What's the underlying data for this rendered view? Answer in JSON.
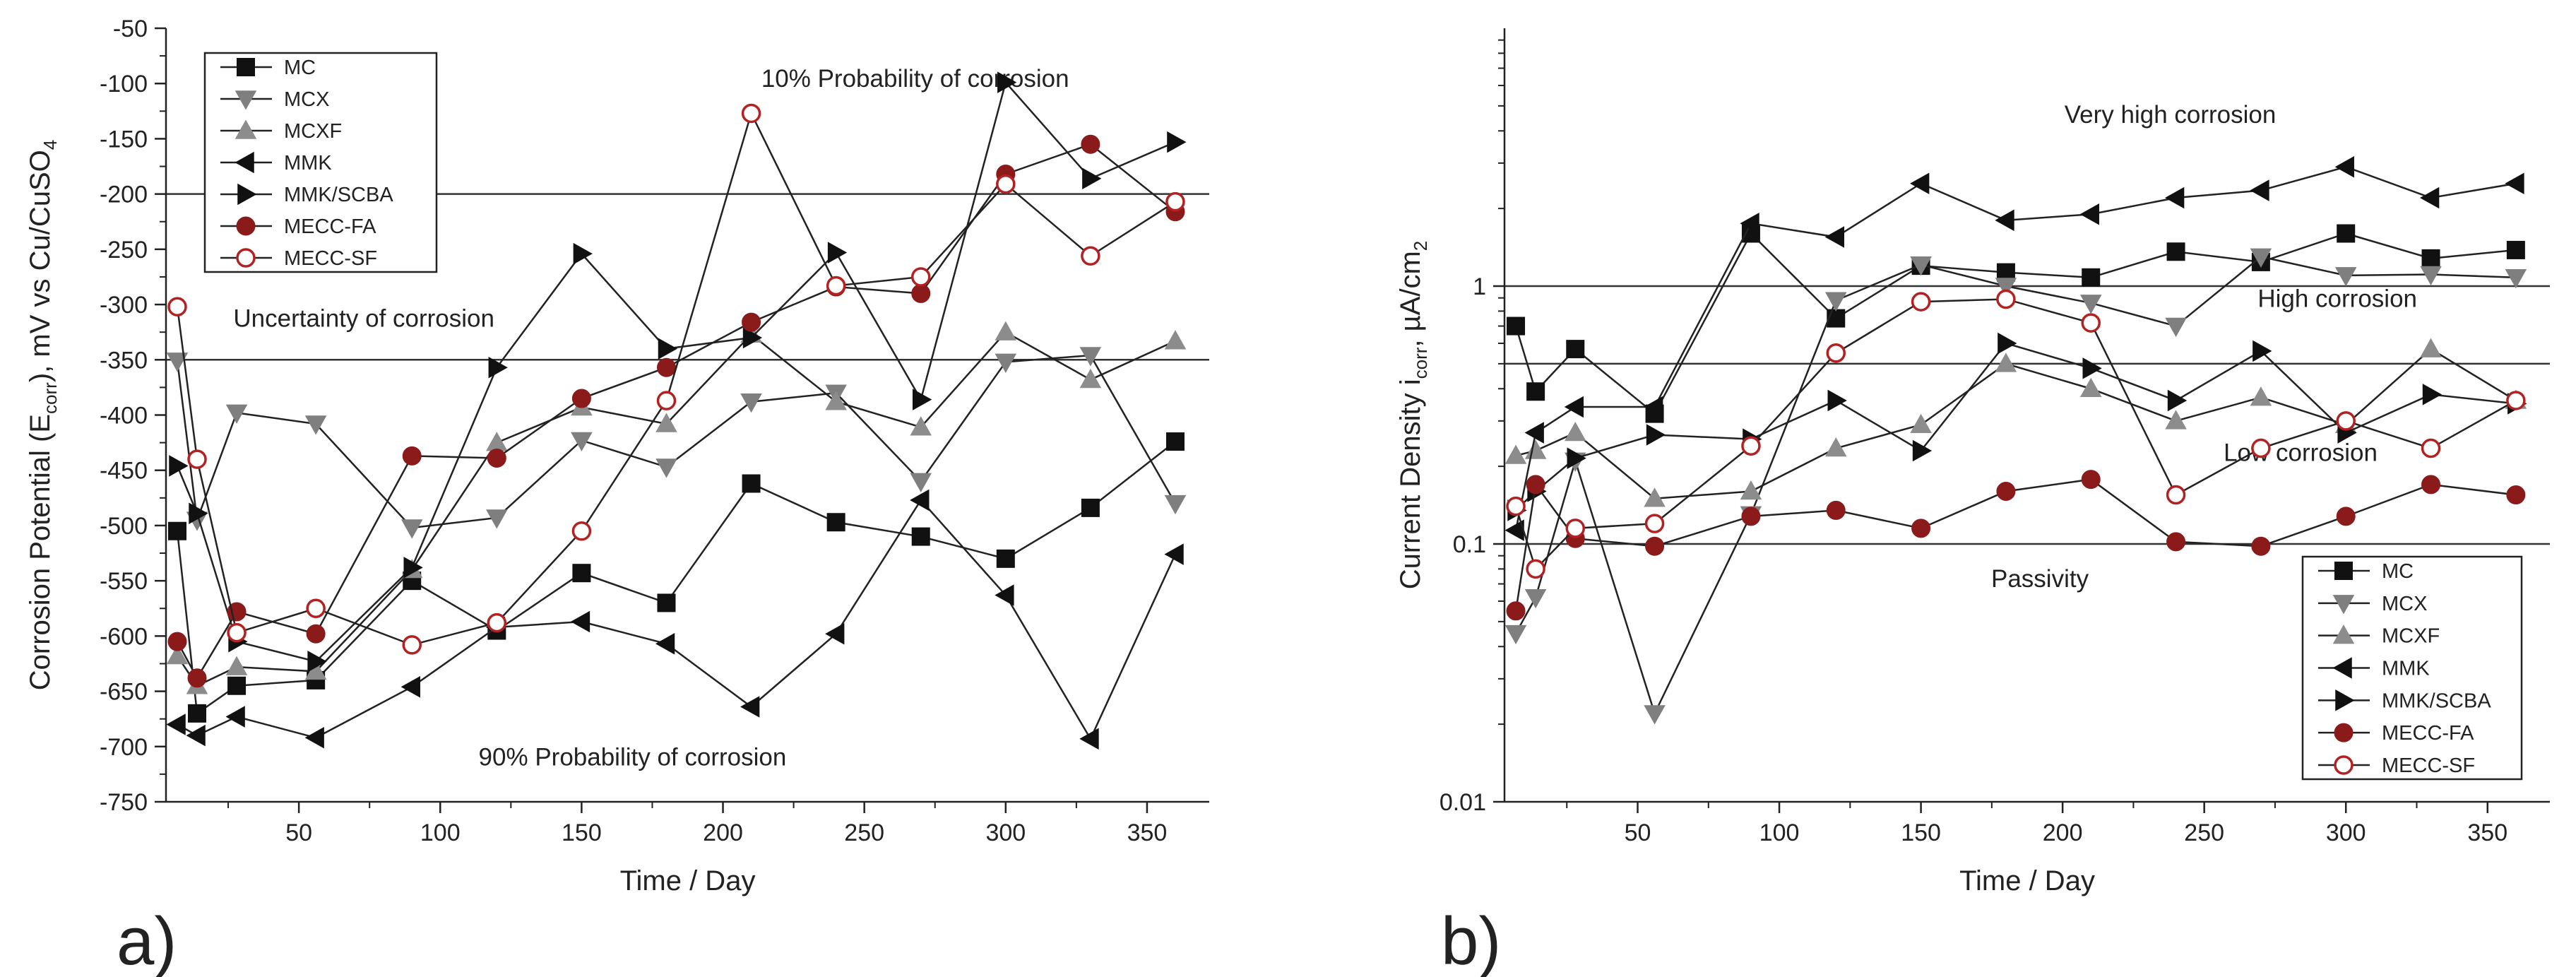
{
  "chart_data": [
    {
      "type": "line",
      "panel_label": "a)",
      "xlabel": "Time / Day",
      "ylabel_parts": [
        "Corrosion Potential (E",
        "corr",
        "), mV vs Cu/CuSO",
        "4"
      ],
      "xlim": [
        3,
        372
      ],
      "ylim": [
        -750,
        -50
      ],
      "xticks": [
        50,
        100,
        150,
        200,
        250,
        300,
        350
      ],
      "yticks": [
        -750,
        -700,
        -650,
        -600,
        -550,
        -500,
        -450,
        -400,
        -350,
        -300,
        -250,
        -200,
        -150,
        -100,
        -50
      ],
      "grid": false,
      "legend_position": "top-left",
      "reference_lines": [
        {
          "y": -200,
          "label": "10% Probability of corrosion",
          "label_x": 268,
          "label_y": -103
        },
        {
          "y": -350,
          "label": "Uncertainty of corrosion",
          "label_x": 73,
          "label_y": -320
        },
        {
          "y": -750,
          "label": "90% Probability of corrosion",
          "label_x": 168,
          "label_y": -717
        }
      ],
      "series": [
        {
          "name": "MC",
          "marker": "square",
          "color": "#111111",
          "x": [
            7,
            14,
            28,
            56,
            90,
            120,
            150,
            180,
            210,
            240,
            270,
            300,
            330,
            360
          ],
          "y": [
            -505,
            -670,
            -645,
            -640,
            -550,
            -595,
            -543,
            -570,
            -462,
            -497,
            -510,
            -530,
            -484,
            -424
          ]
        },
        {
          "name": "MCX",
          "marker": "triangle-down",
          "color": "#7f7f7f",
          "x": [
            7,
            14,
            28,
            56,
            90,
            120,
            150,
            180,
            210,
            240,
            270,
            300,
            330,
            360
          ],
          "y": [
            -351,
            -495,
            -398,
            -408,
            -502,
            -493,
            -423,
            -447,
            -388,
            -380,
            -460,
            -352,
            -346,
            -480
          ]
        },
        {
          "name": "MCXF",
          "marker": "triangle-up",
          "color": "#8c8c8c",
          "x": [
            7,
            14,
            28,
            56,
            90,
            120,
            150,
            180,
            210,
            240,
            270,
            300,
            330,
            360
          ],
          "y": [
            -618,
            -645,
            -628,
            -632,
            -540,
            -425,
            -393,
            -408,
            -327,
            -388,
            -411,
            -325,
            -368,
            -333
          ]
        },
        {
          "name": "MMK",
          "marker": "triangle-left",
          "color": "#111111",
          "x": [
            7,
            14,
            28,
            56,
            90,
            120,
            150,
            180,
            210,
            240,
            270,
            300,
            330,
            360
          ],
          "y": [
            -680,
            -690,
            -673,
            -692,
            -646,
            -592,
            -587,
            -607,
            -664,
            -598,
            -477,
            -563,
            -693,
            -526
          ]
        },
        {
          "name": "MMK/SCBA",
          "marker": "triangle-right",
          "color": "#111111",
          "x": [
            7,
            14,
            28,
            56,
            90,
            120,
            150,
            180,
            210,
            240,
            270,
            300,
            330,
            360
          ],
          "y": [
            -446,
            -489,
            -605,
            -623,
            -538,
            -357,
            -254,
            -340,
            -330,
            -253,
            -386,
            -99,
            -186,
            -153
          ]
        },
        {
          "name": "MECC-FA",
          "marker": "circle-filled",
          "color": "#8b1a1a",
          "x": [
            7,
            14,
            28,
            56,
            90,
            120,
            150,
            180,
            210,
            240,
            270,
            300,
            330,
            360
          ],
          "y": [
            -605,
            -638,
            -578,
            -598,
            -437,
            -439,
            -385,
            -357,
            -316,
            -284,
            -290,
            -182,
            -155,
            -216
          ]
        },
        {
          "name": "MECC-SF",
          "marker": "circle-open",
          "color": "#b22222",
          "x": [
            7,
            14,
            28,
            56,
            90,
            120,
            150,
            180,
            210,
            240,
            270,
            300,
            330,
            360
          ],
          "y": [
            -302,
            -440,
            -597,
            -575,
            -608,
            -588,
            -505,
            -387,
            -127,
            -283,
            -275,
            -191,
            -256,
            -207
          ]
        }
      ]
    },
    {
      "type": "line",
      "panel_label": "b)",
      "yscale": "log",
      "xlabel": "Time / Day",
      "ylabel_parts": [
        "Current Density i",
        "corr",
        ", µA/cm",
        "2"
      ],
      "xlim": [
        3,
        372
      ],
      "ylim": [
        0.01,
        10
      ],
      "xticks": [
        50,
        100,
        150,
        200,
        250,
        300,
        350
      ],
      "yticks": [
        0.01,
        0.1,
        1
      ],
      "ytick_labels": [
        "0.01",
        "0.1",
        "1"
      ],
      "grid": false,
      "legend_position": "bottom-right",
      "reference_lines": [
        {
          "y": 1,
          "label": "Very high corrosion",
          "label_x": 238,
          "label_y": 4.3
        },
        {
          "y": 0.5,
          "label": "High corrosion",
          "label_x": 297,
          "label_y": 0.83
        },
        {
          "y": 0.1,
          "label": "Low corrosion",
          "label_x": 284,
          "label_y": 0.21
        },
        {
          "label": "Passivity",
          "label_x": 192,
          "label_y": 0.068
        }
      ],
      "series": [
        {
          "name": "MC",
          "marker": "square",
          "color": "#111111",
          "x": [
            7,
            14,
            28,
            56,
            90,
            120,
            150,
            180,
            210,
            240,
            270,
            300,
            330,
            360
          ],
          "y": [
            0.7,
            0.39,
            0.57,
            0.32,
            1.6,
            0.75,
            1.2,
            1.13,
            1.08,
            1.36,
            1.24,
            1.6,
            1.28,
            1.38
          ]
        },
        {
          "name": "MCX",
          "marker": "triangle-down",
          "color": "#7f7f7f",
          "x": [
            7,
            14,
            28,
            56,
            90,
            120,
            150,
            180,
            210,
            240,
            270,
            300,
            330,
            360
          ],
          "y": [
            0.045,
            0.062,
            0.21,
            0.022,
            0.13,
            0.88,
            1.21,
            1.0,
            0.86,
            0.7,
            1.3,
            1.1,
            1.11,
            1.08
          ]
        },
        {
          "name": "MCXF",
          "marker": "triangle-up",
          "color": "#8c8c8c",
          "x": [
            7,
            14,
            28,
            56,
            90,
            120,
            150,
            180,
            210,
            240,
            270,
            300,
            330,
            360
          ],
          "y": [
            0.22,
            0.23,
            0.27,
            0.15,
            0.16,
            0.235,
            0.29,
            0.5,
            0.4,
            0.3,
            0.37,
            0.29,
            0.57,
            0.36
          ]
        },
        {
          "name": "MMK",
          "marker": "triangle-left",
          "color": "#111111",
          "x": [
            7,
            14,
            28,
            56,
            90,
            120,
            150,
            180,
            210,
            240,
            270,
            300,
            330,
            360
          ],
          "y": [
            0.113,
            0.27,
            0.34,
            0.34,
            1.75,
            1.55,
            2.5,
            1.8,
            1.9,
            2.2,
            2.35,
            2.9,
            2.2,
            2.5
          ]
        },
        {
          "name": "MMK/SCBA",
          "marker": "triangle-right",
          "color": "#111111",
          "x": [
            7,
            14,
            28,
            56,
            90,
            120,
            150,
            180,
            210,
            240,
            270,
            300,
            330,
            360
          ],
          "y": [
            0.135,
            0.16,
            0.215,
            0.265,
            0.255,
            0.36,
            0.23,
            0.6,
            0.48,
            0.36,
            0.56,
            0.27,
            0.38,
            0.35
          ]
        },
        {
          "name": "MECC-FA",
          "marker": "circle-filled",
          "color": "#8b1a1a",
          "x": [
            7,
            14,
            28,
            56,
            90,
            120,
            150,
            180,
            210,
            240,
            270,
            300,
            330,
            360
          ],
          "y": [
            0.055,
            0.17,
            0.105,
            0.098,
            0.128,
            0.135,
            0.115,
            0.16,
            0.178,
            0.102,
            0.098,
            0.128,
            0.17,
            0.155
          ]
        },
        {
          "name": "MECC-SF",
          "marker": "circle-open",
          "color": "#b22222",
          "x": [
            7,
            14,
            28,
            56,
            90,
            120,
            150,
            180,
            210,
            240,
            270,
            300,
            330,
            360
          ],
          "y": [
            0.14,
            0.08,
            0.115,
            0.12,
            0.24,
            0.55,
            0.87,
            0.89,
            0.72,
            0.155,
            0.235,
            0.3,
            0.235,
            0.36
          ]
        }
      ]
    }
  ]
}
